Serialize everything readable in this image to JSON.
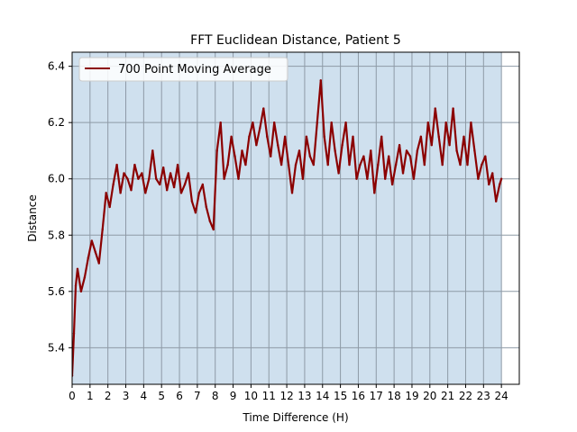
{
  "chart_data": {
    "type": "line",
    "title": "FFT Euclidean Distance, Patient 5",
    "xlabel": "Time Difference (H)",
    "ylabel": "Distance",
    "xlim": [
      0,
      25
    ],
    "ylim": [
      5.27,
      6.45
    ],
    "x_ticks": [
      0,
      1,
      2,
      3,
      4,
      5,
      6,
      7,
      8,
      9,
      10,
      11,
      12,
      13,
      14,
      15,
      16,
      17,
      18,
      19,
      20,
      21,
      22,
      23,
      24
    ],
    "y_ticks": [
      5.4,
      5.6,
      5.8,
      6.0,
      6.2,
      6.4
    ],
    "grid": true,
    "shaded_region": {
      "x_start": 0,
      "x_end": 24,
      "color": "#cfe0ee"
    },
    "legend": {
      "position": "top-left",
      "entries": [
        "700 Point Moving Average"
      ]
    },
    "series": [
      {
        "name": "700 Point Moving Average",
        "color": "#8b0000",
        "x": [
          0.0,
          0.1,
          0.2,
          0.3,
          0.5,
          0.7,
          0.9,
          1.1,
          1.3,
          1.5,
          1.7,
          1.9,
          2.1,
          2.3,
          2.5,
          2.7,
          2.9,
          3.1,
          3.3,
          3.5,
          3.7,
          3.9,
          4.1,
          4.3,
          4.5,
          4.7,
          4.9,
          5.1,
          5.3,
          5.5,
          5.7,
          5.9,
          6.1,
          6.3,
          6.5,
          6.7,
          6.9,
          7.1,
          7.3,
          7.5,
          7.7,
          7.9,
          8.1,
          8.3,
          8.5,
          8.7,
          8.9,
          9.1,
          9.3,
          9.5,
          9.7,
          9.9,
          10.1,
          10.3,
          10.5,
          10.7,
          10.9,
          11.1,
          11.3,
          11.5,
          11.7,
          11.9,
          12.1,
          12.3,
          12.5,
          12.7,
          12.9,
          13.1,
          13.3,
          13.5,
          13.7,
          13.9,
          14.1,
          14.3,
          14.5,
          14.7,
          14.9,
          15.1,
          15.3,
          15.5,
          15.7,
          15.9,
          16.1,
          16.3,
          16.5,
          16.7,
          16.9,
          17.1,
          17.3,
          17.5,
          17.7,
          17.9,
          18.1,
          18.3,
          18.5,
          18.7,
          18.9,
          19.1,
          19.3,
          19.5,
          19.7,
          19.9,
          20.1,
          20.3,
          20.5,
          20.7,
          20.9,
          21.1,
          21.3,
          21.5,
          21.7,
          21.9,
          22.1,
          22.3,
          22.5,
          22.7,
          22.9,
          23.1,
          23.3,
          23.5,
          23.7,
          23.9,
          24.0
        ],
        "values": [
          5.3,
          5.45,
          5.62,
          5.68,
          5.6,
          5.65,
          5.72,
          5.78,
          5.74,
          5.7,
          5.82,
          5.95,
          5.9,
          5.98,
          6.05,
          5.95,
          6.02,
          6.0,
          5.96,
          6.05,
          6.0,
          6.02,
          5.95,
          6.0,
          6.1,
          6.0,
          5.98,
          6.04,
          5.96,
          6.02,
          5.97,
          6.05,
          5.95,
          5.98,
          6.02,
          5.92,
          5.88,
          5.95,
          5.98,
          5.9,
          5.85,
          5.82,
          6.1,
          6.2,
          6.0,
          6.05,
          6.15,
          6.08,
          6.0,
          6.1,
          6.05,
          6.15,
          6.2,
          6.12,
          6.18,
          6.25,
          6.15,
          6.08,
          6.2,
          6.12,
          6.05,
          6.15,
          6.05,
          5.95,
          6.05,
          6.1,
          6.0,
          6.15,
          6.08,
          6.05,
          6.2,
          6.35,
          6.15,
          6.05,
          6.2,
          6.1,
          6.02,
          6.12,
          6.2,
          6.05,
          6.15,
          6.0,
          6.05,
          6.08,
          6.0,
          6.1,
          5.95,
          6.05,
          6.15,
          6.0,
          6.08,
          5.98,
          6.05,
          6.12,
          6.02,
          6.1,
          6.08,
          6.0,
          6.1,
          6.15,
          6.05,
          6.2,
          6.12,
          6.25,
          6.15,
          6.05,
          6.2,
          6.12,
          6.25,
          6.1,
          6.05,
          6.15,
          6.05,
          6.2,
          6.1,
          6.0,
          6.05,
          6.08,
          5.98,
          6.02,
          5.92,
          5.98,
          6.0
        ]
      }
    ]
  }
}
